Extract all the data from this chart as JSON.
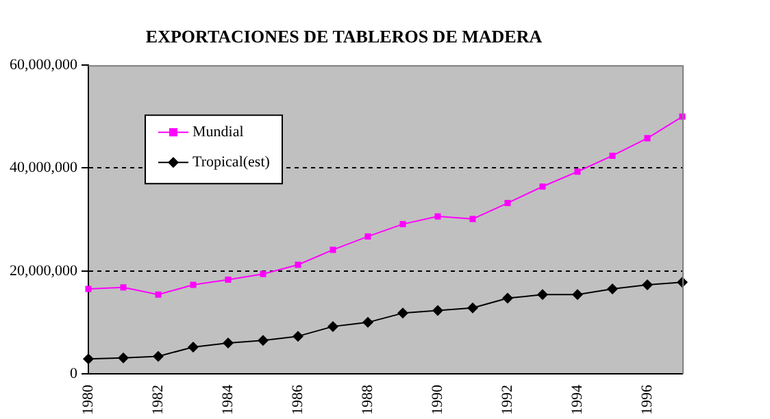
{
  "chart_data": {
    "type": "line",
    "title": "EXPORTACIONES DE TABLEROS DE MADERA",
    "categories": [
      "1980",
      null,
      "1982",
      null,
      "1984",
      null,
      "1986",
      null,
      "1988",
      null,
      "1990",
      null,
      "1992",
      null,
      "1994",
      null,
      "1996",
      null
    ],
    "series": [
      {
        "name": "Mundial",
        "color": "#ff00ff",
        "marker": "square",
        "values": [
          16500000,
          16800000,
          15400000,
          17300000,
          18300000,
          19400000,
          21200000,
          24100000,
          26700000,
          29100000,
          30600000,
          30100000,
          33200000,
          36400000,
          39300000,
          42400000,
          45800000,
          50000000
        ]
      },
      {
        "name": "Tropical(est)",
        "color": "#000000",
        "marker": "diamond",
        "values": [
          2900000,
          3100000,
          3400000,
          5200000,
          6000000,
          6500000,
          7300000,
          9200000,
          10000000,
          11800000,
          12300000,
          12800000,
          14700000,
          15400000,
          15400000,
          16500000,
          17300000,
          17800000
        ]
      }
    ],
    "ylim": [
      0,
      60000000
    ],
    "yticks": [
      {
        "value": 0,
        "label": "0"
      },
      {
        "value": 20000000,
        "label": "20,000,000"
      },
      {
        "value": 40000000,
        "label": "40,000,000"
      },
      {
        "value": 60000000,
        "label": "60,000,000"
      }
    ],
    "grid": "y",
    "legend": "top left",
    "line_style": "solid"
  }
}
